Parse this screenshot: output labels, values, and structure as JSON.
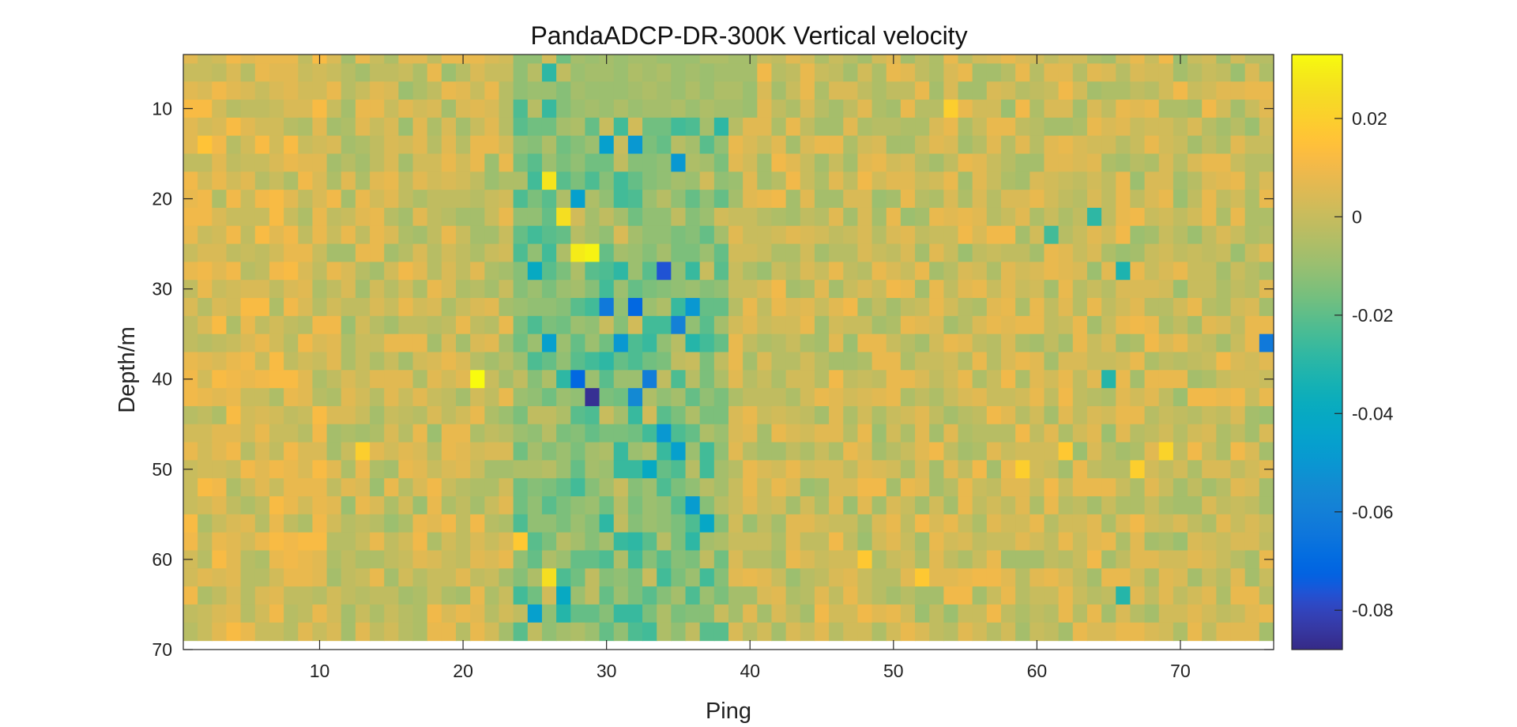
{
  "chart_data": {
    "type": "heatmap",
    "title": "PandaADCP-DR-300K Vertical velocity",
    "xlabel": "Ping",
    "ylabel": "Depth/m",
    "xlim": [
      1,
      76
    ],
    "ylim": [
      4,
      70
    ],
    "y_reversed": true,
    "xticks": [
      10,
      20,
      30,
      40,
      50,
      60,
      70
    ],
    "yticks": [
      10,
      20,
      30,
      40,
      50,
      60,
      70
    ],
    "grid": false,
    "colormap": "parula",
    "colorbar": {
      "range": [
        -0.088,
        0.033
      ],
      "ticks": [
        0.02,
        0,
        -0.02,
        -0.04,
        -0.06,
        -0.08
      ],
      "tick_labels": [
        "0.02",
        "0",
        "-0.02",
        "-0.04",
        "-0.06",
        "-0.08"
      ]
    },
    "grid_size": {
      "pings": 76,
      "depth_bins": 33,
      "depth_start": 4,
      "depth_step": 2
    },
    "background_value": 0.0,
    "anomalies": [
      {
        "ping": 29,
        "depth": 41,
        "value": -0.085
      },
      {
        "ping": 28,
        "depth": 39,
        "value": -0.07
      },
      {
        "ping": 32,
        "depth": 31,
        "value": -0.07
      },
      {
        "ping": 34,
        "depth": 27,
        "value": -0.075
      },
      {
        "ping": 30,
        "depth": 31,
        "value": -0.062
      },
      {
        "ping": 31,
        "depth": 35,
        "value": -0.05
      },
      {
        "ping": 33,
        "depth": 39,
        "value": -0.06
      },
      {
        "ping": 32,
        "depth": 41,
        "value": -0.055
      },
      {
        "ping": 35,
        "depth": 33,
        "value": -0.058
      },
      {
        "ping": 36,
        "depth": 31,
        "value": -0.05
      },
      {
        "ping": 34,
        "depth": 45,
        "value": -0.05
      },
      {
        "ping": 35,
        "depth": 47,
        "value": -0.045
      },
      {
        "ping": 36,
        "depth": 53,
        "value": -0.048
      },
      {
        "ping": 30,
        "depth": 13,
        "value": -0.045
      },
      {
        "ping": 32,
        "depth": 13,
        "value": -0.05
      },
      {
        "ping": 35,
        "depth": 15,
        "value": -0.05
      },
      {
        "ping": 28,
        "depth": 19,
        "value": -0.045
      },
      {
        "ping": 25,
        "depth": 27,
        "value": -0.04
      },
      {
        "ping": 26,
        "depth": 35,
        "value": -0.045
      },
      {
        "ping": 25,
        "depth": 65,
        "value": -0.045
      },
      {
        "ping": 27,
        "depth": 63,
        "value": -0.04
      },
      {
        "ping": 76,
        "depth": 35,
        "value": -0.062
      },
      {
        "ping": 33,
        "depth": 49,
        "value": -0.04
      },
      {
        "ping": 37,
        "depth": 55,
        "value": -0.042
      },
      {
        "ping": 29,
        "depth": 25,
        "value": 0.03
      },
      {
        "ping": 28,
        "depth": 25,
        "value": 0.028
      },
      {
        "ping": 21,
        "depth": 39,
        "value": 0.032
      },
      {
        "ping": 26,
        "depth": 17,
        "value": 0.026
      },
      {
        "ping": 27,
        "depth": 21,
        "value": 0.025
      },
      {
        "ping": 26,
        "depth": 61,
        "value": 0.025
      },
      {
        "ping": 54,
        "depth": 9,
        "value": 0.018
      },
      {
        "ping": 69,
        "depth": 47,
        "value": 0.02
      },
      {
        "ping": 13,
        "depth": 47,
        "value": 0.018
      },
      {
        "ping": 59,
        "depth": 49,
        "value": 0.018
      },
      {
        "ping": 62,
        "depth": 47,
        "value": 0.017
      },
      {
        "ping": 67,
        "depth": 49,
        "value": 0.018
      },
      {
        "ping": 48,
        "depth": 59,
        "value": 0.017
      },
      {
        "ping": 52,
        "depth": 61,
        "value": 0.016
      },
      {
        "ping": 24,
        "depth": 57,
        "value": 0.016
      },
      {
        "ping": 2,
        "depth": 13,
        "value": 0.015
      },
      {
        "ping": 66,
        "depth": 27,
        "value": -0.032
      },
      {
        "ping": 65,
        "depth": 39,
        "value": -0.03
      },
      {
        "ping": 64,
        "depth": 21,
        "value": -0.028
      },
      {
        "ping": 66,
        "depth": 63,
        "value": -0.03
      },
      {
        "ping": 61,
        "depth": 23,
        "value": -0.025
      }
    ]
  }
}
